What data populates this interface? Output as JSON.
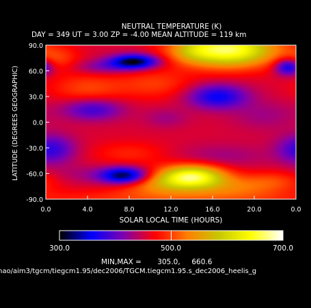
{
  "header": {
    "title": "NEUTRAL TEMPERATURE (K)",
    "subtitle": "DAY = 349   UT =   3.00   ZP =   -4.00   MEAN ALTITUDE = 119 km"
  },
  "colorbar": {
    "min_label": "300.0",
    "mid_label": "500.0",
    "max_label": "700.0",
    "minmax_text": "MIN,MAX =       305.0,     660.6"
  },
  "footer": {
    "path": "hao/aim3/tgcm/tiegcm1.95/dec2006/TGCM.tiegcm1.95.s_dec2006_heelis_g"
  },
  "colors": {
    "background": "#000000",
    "text": "#ffffff",
    "colormap": [
      "#000000",
      "#0000ff",
      "#7f00b0",
      "#ff0000",
      "#ff7f00",
      "#c8c800",
      "#ffff00",
      "#ffffff"
    ]
  },
  "chart_data": {
    "type": "heatmap",
    "title": "NEUTRAL TEMPERATURE (K)",
    "xlabel": "SOLAR LOCAL TIME (HOURS)",
    "ylabel": "LATITUDE (DEGREES GEOGRAPHIC)",
    "xlim": [
      0,
      24
    ],
    "ylim": [
      -90,
      90
    ],
    "x_ticks": [
      "0.0",
      "4.0",
      "8.0",
      "12.0",
      "16.0",
      "20.0",
      "0.0"
    ],
    "y_ticks": [
      "90.0",
      "60.0",
      "30.0",
      "0.0",
      "-30.0",
      "-60.0",
      "-90.0"
    ],
    "value_range": [
      300,
      700
    ],
    "units": "K",
    "min": 305.0,
    "max": 660.6,
    "background_value": 455,
    "features": [
      {
        "x": 8.5,
        "y": 71,
        "sx": 1.6,
        "sy": 6,
        "dv": -150
      },
      {
        "x": 5.5,
        "y": 65,
        "sx": 2.0,
        "sy": 6,
        "dv": -40
      },
      {
        "x": 17.5,
        "y": 85,
        "sx": 3.2,
        "sy": 14,
        "dv": 210
      },
      {
        "x": 14.0,
        "y": 84,
        "sx": 1.5,
        "sy": 10,
        "dv": 40
      },
      {
        "x": 23.3,
        "y": 65,
        "sx": 0.9,
        "sy": 7,
        "dv": -110
      },
      {
        "x": 4.0,
        "y": 40,
        "sx": 2.5,
        "sy": 12,
        "dv": 45
      },
      {
        "x": 1.0,
        "y": 75,
        "sx": 1.5,
        "sy": 10,
        "dv": 40
      },
      {
        "x": 10.5,
        "y": 45,
        "sx": 2.5,
        "sy": 12,
        "dv": 40
      },
      {
        "x": 16.5,
        "y": 30,
        "sx": 2.0,
        "sy": 10,
        "dv": -95
      },
      {
        "x": 4.5,
        "y": 15,
        "sx": 2.0,
        "sy": 9,
        "dv": -70
      },
      {
        "x": 11.5,
        "y": 5,
        "sx": 1.5,
        "sy": 8,
        "dv": -25
      },
      {
        "x": 21.0,
        "y": 8,
        "sx": 2.2,
        "sy": 12,
        "dv": -25
      },
      {
        "x": 1.0,
        "y": -32,
        "sx": 1.5,
        "sy": 12,
        "dv": -40
      },
      {
        "x": 24.0,
        "y": -32,
        "sx": 1.5,
        "sy": 12,
        "dv": -40
      },
      {
        "x": 17.0,
        "y": -40,
        "sx": 3.0,
        "sy": 10,
        "dv": -25
      },
      {
        "x": 8.0,
        "y": -37,
        "sx": 2.5,
        "sy": 10,
        "dv": 30
      },
      {
        "x": 7.5,
        "y": -63,
        "sx": 1.6,
        "sy": 7,
        "dv": -150
      },
      {
        "x": 3.5,
        "y": -62,
        "sx": 2.0,
        "sy": 8,
        "dv": -20
      },
      {
        "x": 14.0,
        "y": -63,
        "sx": 2.2,
        "sy": 9,
        "dv": 185
      },
      {
        "x": 11.0,
        "y": -74,
        "sx": 3.0,
        "sy": 9,
        "dv": 70
      },
      {
        "x": 18.0,
        "y": -76,
        "sx": 3.5,
        "sy": 9,
        "dv": 60
      },
      {
        "x": 22.0,
        "y": -68,
        "sx": 2.0,
        "sy": 8,
        "dv": 30
      },
      {
        "x": 12.0,
        "y": -90,
        "sx": 12.0,
        "sy": 7,
        "dv": 35
      }
    ]
  }
}
